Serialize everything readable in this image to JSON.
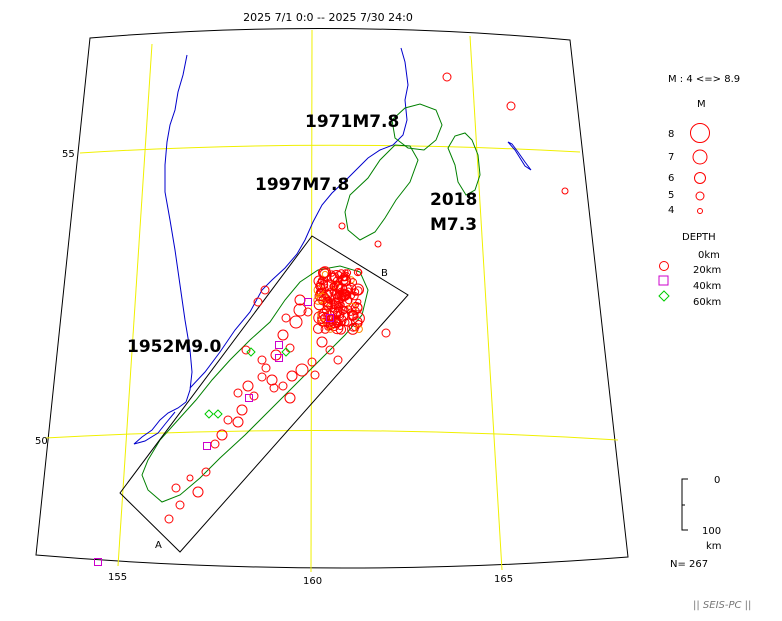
{
  "title": "2025 7/1 0:0 -- 2025 7/30 24:0",
  "axes": {
    "lat_labels": [
      "55",
      "50"
    ],
    "lon_labels": [
      "155",
      "160",
      "165"
    ]
  },
  "annotations": [
    "1971M7.8",
    "1997M7.8",
    "2018",
    "M7.3",
    "1952M9.0"
  ],
  "section_labels": [
    "A",
    "B"
  ],
  "legend": {
    "mag_range": "M : 4 <=> 8.9",
    "mag_title": "M",
    "magnitudes": [
      "8",
      "7",
      "6",
      "5",
      "4"
    ],
    "depth_title": "DEPTH",
    "depths": [
      "0km",
      "20km",
      "40km",
      "60km"
    ],
    "depth_colors": [
      "#ff0000",
      "#ff0000",
      "#cc00cc",
      "#00cc00"
    ]
  },
  "scale": {
    "top": "0",
    "bottom": "100",
    "unit": "km"
  },
  "count": "N= 267",
  "credit": "|| SEIS-PC ||",
  "colors": {
    "coast": "#0000cc",
    "grid": "#f0f000",
    "rupture": "#008000",
    "shallow": "#ff0000",
    "mid": "#cc00cc",
    "deep": "#00cc00"
  }
}
